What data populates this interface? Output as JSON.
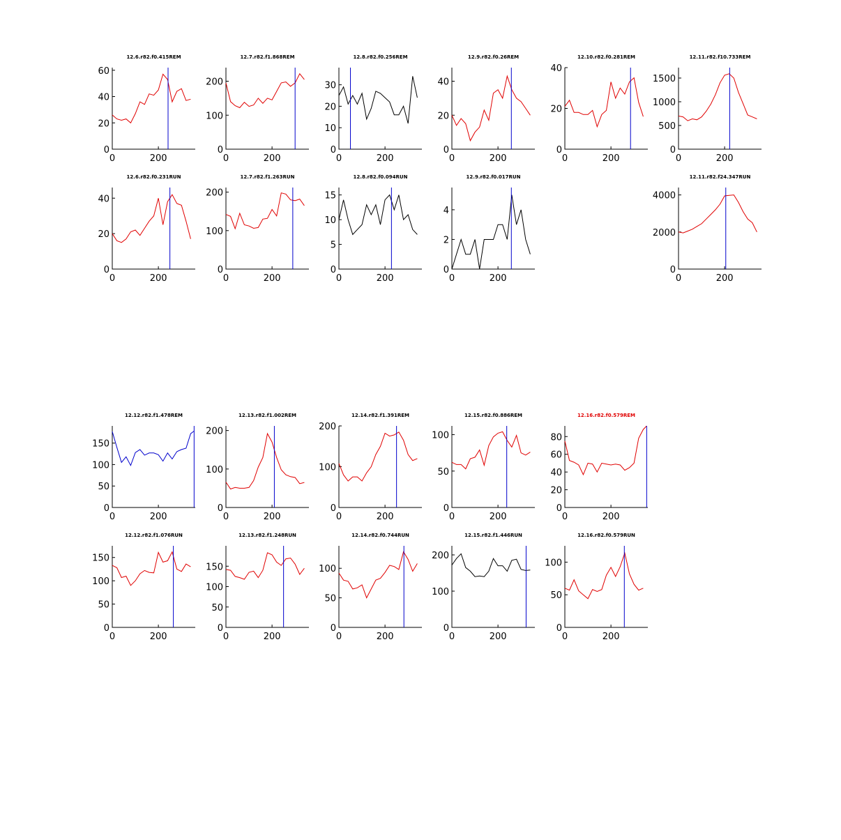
{
  "figure": {
    "colors": {
      "red": "#e00000",
      "black": "#000000",
      "blue": "#0000cc"
    }
  },
  "chart_data": [
    {
      "type": "line",
      "title": "12.6.r82.f0.415REM",
      "title_color": "black",
      "line_color": "red",
      "xlim": [
        0,
        360
      ],
      "ylim": [
        0,
        62
      ],
      "yticks": [
        0,
        20,
        40,
        60
      ],
      "xticks": [
        0,
        200
      ],
      "marker_x": 242,
      "x": [
        0,
        20,
        40,
        60,
        80,
        100,
        120,
        140,
        160,
        180,
        200,
        220,
        240,
        260,
        280,
        300,
        320,
        340
      ],
      "y": [
        26,
        23,
        22,
        23,
        20,
        27,
        36,
        34,
        42,
        41,
        45,
        57,
        53,
        36,
        44,
        46,
        37,
        38
      ]
    },
    {
      "type": "line",
      "title": "12.7.r82.f1.868REM",
      "title_color": "black",
      "line_color": "red",
      "xlim": [
        0,
        360
      ],
      "ylim": [
        0,
        240
      ],
      "yticks": [
        0,
        100,
        200
      ],
      "xticks": [
        0,
        200
      ],
      "marker_x": 300,
      "x": [
        0,
        20,
        40,
        60,
        80,
        100,
        120,
        140,
        160,
        180,
        200,
        220,
        240,
        260,
        280,
        300,
        320,
        340
      ],
      "y": [
        195,
        140,
        128,
        122,
        138,
        126,
        130,
        150,
        135,
        150,
        145,
        170,
        195,
        198,
        185,
        195,
        222,
        205
      ]
    },
    {
      "type": "line",
      "title": "12.8.r82.f0.256REM",
      "title_color": "black",
      "line_color": "black",
      "xlim": [
        0,
        360
      ],
      "ylim": [
        0,
        38
      ],
      "yticks": [
        0,
        10,
        20,
        30
      ],
      "xticks": [
        0,
        200
      ],
      "marker_x": 50,
      "x": [
        0,
        20,
        40,
        60,
        80,
        100,
        120,
        140,
        160,
        180,
        200,
        220,
        240,
        260,
        280,
        300,
        320,
        340
      ],
      "y": [
        25,
        29,
        21,
        25,
        21,
        26,
        14,
        19,
        27,
        26,
        24,
        22,
        16,
        16,
        20,
        12,
        34,
        24
      ]
    },
    {
      "type": "line",
      "title": "12.9.r82.f0.26REM",
      "title_color": "black",
      "line_color": "red",
      "xlim": [
        0,
        360
      ],
      "ylim": [
        0,
        48
      ],
      "yticks": [
        0,
        20,
        40
      ],
      "xticks": [
        0,
        200
      ],
      "marker_x": 258,
      "x": [
        0,
        20,
        40,
        60,
        80,
        100,
        120,
        140,
        160,
        180,
        200,
        220,
        240,
        260,
        280,
        300,
        320,
        340
      ],
      "y": [
        20,
        14,
        18,
        15,
        5,
        10,
        13,
        23,
        17,
        33,
        35,
        30,
        43,
        35,
        30,
        28,
        24,
        20
      ]
    },
    {
      "type": "line",
      "title": "12.10.r82.f0.281REM",
      "title_color": "black",
      "line_color": "red",
      "xlim": [
        0,
        360
      ],
      "ylim": [
        0,
        40
      ],
      "yticks": [
        0,
        20,
        40
      ],
      "xticks": [
        0,
        200
      ],
      "marker_x": 285,
      "x": [
        0,
        20,
        40,
        60,
        80,
        100,
        120,
        140,
        160,
        180,
        200,
        220,
        240,
        260,
        280,
        300,
        320,
        340
      ],
      "y": [
        21,
        24,
        18,
        18,
        17,
        17,
        19,
        11,
        17,
        19,
        33,
        25,
        30,
        27,
        33,
        35,
        23,
        16
      ]
    },
    {
      "type": "line",
      "title": "12.11.r82.f10.733REM",
      "title_color": "black",
      "line_color": "red",
      "xlim": [
        0,
        360
      ],
      "ylim": [
        0,
        1720
      ],
      "yticks": [
        0,
        500,
        1000,
        1500
      ],
      "xticks": [
        0,
        200
      ],
      "marker_x": 222,
      "x": [
        0,
        20,
        40,
        60,
        80,
        100,
        120,
        140,
        160,
        180,
        200,
        220,
        240,
        260,
        280,
        300,
        320,
        340
      ],
      "y": [
        700,
        680,
        600,
        640,
        620,
        680,
        800,
        950,
        1150,
        1400,
        1560,
        1590,
        1500,
        1200,
        960,
        720,
        680,
        640
      ]
    },
    {
      "type": "line",
      "title": "12.6.r82.f0.231RUN",
      "title_color": "black",
      "line_color": "red",
      "xlim": [
        0,
        360
      ],
      "ylim": [
        0,
        46
      ],
      "yticks": [
        0,
        20,
        40
      ],
      "xticks": [
        0,
        200
      ],
      "marker_x": 250,
      "x": [
        0,
        20,
        40,
        60,
        80,
        100,
        120,
        140,
        160,
        180,
        200,
        220,
        240,
        260,
        280,
        300,
        320,
        340
      ],
      "y": [
        20,
        16,
        15,
        17,
        21,
        22,
        19,
        23,
        27,
        30,
        40,
        25,
        38,
        42,
        37,
        36,
        27,
        17
      ]
    },
    {
      "type": "line",
      "title": "12.7.r82.f1.263RUN",
      "title_color": "black",
      "line_color": "red",
      "xlim": [
        0,
        360
      ],
      "ylim": [
        0,
        212
      ],
      "yticks": [
        0,
        100,
        200
      ],
      "xticks": [
        0,
        200
      ],
      "marker_x": 290,
      "x": [
        0,
        20,
        40,
        60,
        80,
        100,
        120,
        140,
        160,
        180,
        200,
        220,
        240,
        260,
        280,
        300,
        320,
        340
      ],
      "y": [
        142,
        137,
        105,
        145,
        115,
        112,
        106,
        108,
        130,
        132,
        155,
        138,
        198,
        195,
        180,
        178,
        182,
        165
      ]
    },
    {
      "type": "line",
      "title": "12.8.r82.f0.094RUN",
      "title_color": "black",
      "line_color": "black",
      "xlim": [
        0,
        360
      ],
      "ylim": [
        0,
        16.5
      ],
      "yticks": [
        0,
        5,
        10,
        15
      ],
      "xticks": [
        0,
        200
      ],
      "marker_x": 228,
      "x": [
        0,
        20,
        40,
        60,
        80,
        100,
        120,
        140,
        160,
        180,
        200,
        220,
        240,
        260,
        280,
        300,
        320,
        340
      ],
      "y": [
        10,
        14,
        10,
        7,
        8,
        9,
        13,
        11,
        13,
        9,
        14,
        15,
        12,
        15,
        10,
        11,
        8,
        7
      ]
    },
    {
      "type": "line",
      "title": "12.9.r82.f0.017RUN",
      "title_color": "black",
      "line_color": "black",
      "xlim": [
        0,
        360
      ],
      "ylim": [
        0,
        5.5
      ],
      "yticks": [
        0,
        2,
        4
      ],
      "xticks": [
        0,
        200
      ],
      "marker_x": 258,
      "x": [
        0,
        20,
        40,
        60,
        80,
        100,
        120,
        140,
        160,
        180,
        200,
        220,
        240,
        260,
        280,
        300,
        320,
        340
      ],
      "y": [
        0,
        1,
        2,
        1,
        1,
        2,
        0,
        2,
        2,
        2,
        3,
        3,
        2,
        5,
        3,
        4,
        2,
        1
      ]
    },
    null,
    {
      "type": "line",
      "title": "12.11.r82.f24.347RUN",
      "title_color": "black",
      "line_color": "red",
      "xlim": [
        0,
        360
      ],
      "ylim": [
        0,
        4400
      ],
      "yticks": [
        0,
        2000,
        4000
      ],
      "xticks": [
        0,
        200
      ],
      "marker_x": 205,
      "x": [
        0,
        20,
        40,
        60,
        80,
        100,
        120,
        140,
        160,
        180,
        200,
        220,
        240,
        260,
        280,
        300,
        320,
        340
      ],
      "y": [
        2000,
        1950,
        2050,
        2150,
        2300,
        2450,
        2700,
        2950,
        3200,
        3500,
        3950,
        3980,
        4000,
        3600,
        3100,
        2700,
        2500,
        2000
      ]
    },
    {
      "type": "line",
      "title": "12.12.r82.f1.478REM",
      "title_color": "black",
      "line_color": "blue",
      "xlim": [
        0,
        360
      ],
      "ylim": [
        0,
        190
      ],
      "yticks": [
        0,
        50,
        100,
        150
      ],
      "xticks": [
        0,
        200
      ],
      "marker_x": 355,
      "x": [
        0,
        20,
        40,
        60,
        80,
        100,
        120,
        140,
        160,
        180,
        200,
        220,
        240,
        260,
        280,
        300,
        320,
        340,
        355
      ],
      "y": [
        177,
        140,
        105,
        118,
        98,
        128,
        135,
        122,
        127,
        127,
        123,
        108,
        127,
        113,
        130,
        135,
        138,
        172,
        178
      ]
    },
    {
      "type": "line",
      "title": "12.13.r82.f1.002REM",
      "title_color": "black",
      "line_color": "red",
      "xlim": [
        0,
        360
      ],
      "ylim": [
        0,
        212
      ],
      "yticks": [
        0,
        100,
        200
      ],
      "xticks": [
        0,
        200
      ],
      "marker_x": 210,
      "x": [
        0,
        20,
        40,
        60,
        80,
        100,
        120,
        140,
        160,
        180,
        200,
        220,
        240,
        260,
        280,
        300,
        320,
        340
      ],
      "y": [
        66,
        48,
        52,
        50,
        50,
        52,
        70,
        105,
        130,
        192,
        170,
        130,
        98,
        85,
        80,
        78,
        62,
        65
      ]
    },
    {
      "type": "line",
      "title": "12.14.r82.f1.391REM",
      "title_color": "black",
      "line_color": "red",
      "xlim": [
        0,
        360
      ],
      "ylim": [
        0,
        200
      ],
      "yticks": [
        0,
        100,
        200
      ],
      "xticks": [
        0,
        200
      ],
      "marker_x": 250,
      "x": [
        0,
        20,
        40,
        60,
        80,
        100,
        120,
        140,
        160,
        180,
        200,
        220,
        240,
        260,
        280,
        300,
        320,
        340
      ],
      "y": [
        108,
        80,
        65,
        75,
        75,
        65,
        85,
        100,
        130,
        150,
        182,
        175,
        178,
        185,
        165,
        130,
        115,
        120
      ]
    },
    {
      "type": "line",
      "title": "12.15.r82.f0.886REM",
      "title_color": "black",
      "line_color": "red",
      "xlim": [
        0,
        360
      ],
      "ylim": [
        0,
        112
      ],
      "yticks": [
        0,
        50,
        100
      ],
      "xticks": [
        0,
        200
      ],
      "marker_x": 238,
      "x": [
        0,
        20,
        40,
        60,
        80,
        100,
        120,
        140,
        160,
        180,
        200,
        220,
        240,
        260,
        280,
        300,
        320,
        340
      ],
      "y": [
        62,
        59,
        59,
        53,
        67,
        69,
        79,
        58,
        85,
        97,
        102,
        104,
        92,
        83,
        99,
        75,
        72,
        76
      ]
    },
    {
      "type": "line",
      "title": "12.16.r82.f0.579REM",
      "title_color": "red",
      "line_color": "red",
      "xlim": [
        0,
        360
      ],
      "ylim": [
        0,
        92
      ],
      "yticks": [
        0,
        20,
        40,
        60,
        80
      ],
      "xticks": [
        0,
        200
      ],
      "marker_x": 355,
      "x": [
        0,
        20,
        40,
        60,
        80,
        100,
        120,
        140,
        160,
        180,
        200,
        220,
        240,
        260,
        280,
        300,
        320,
        340,
        355
      ],
      "y": [
        75,
        53,
        51,
        48,
        37,
        50,
        49,
        40,
        50,
        49,
        48,
        49,
        48,
        42,
        45,
        50,
        78,
        88,
        92
      ]
    },
    null,
    {
      "type": "line",
      "title": "12.12.r82.f1.076RUN",
      "title_color": "black",
      "line_color": "red",
      "xlim": [
        0,
        360
      ],
      "ylim": [
        0,
        175
      ],
      "yticks": [
        0,
        50,
        100,
        150
      ],
      "xticks": [
        0,
        200
      ],
      "marker_x": 265,
      "x": [
        0,
        20,
        40,
        60,
        80,
        100,
        120,
        140,
        160,
        180,
        200,
        220,
        240,
        260,
        280,
        300,
        320,
        340
      ],
      "y": [
        133,
        128,
        107,
        110,
        90,
        100,
        115,
        122,
        118,
        117,
        161,
        140,
        143,
        162,
        125,
        120,
        136,
        130
      ]
    },
    {
      "type": "line",
      "title": "12.13.r82.f1.248RUN",
      "title_color": "black",
      "line_color": "red",
      "xlim": [
        0,
        360
      ],
      "ylim": [
        0,
        200
      ],
      "yticks": [
        0,
        50,
        100,
        150
      ],
      "xticks": [
        0,
        200
      ],
      "marker_x": 250,
      "x": [
        0,
        20,
        40,
        60,
        80,
        100,
        120,
        140,
        160,
        180,
        200,
        220,
        240,
        260,
        280,
        300,
        320,
        340
      ],
      "y": [
        142,
        140,
        125,
        122,
        118,
        135,
        138,
        122,
        140,
        183,
        178,
        160,
        152,
        168,
        170,
        155,
        130,
        145
      ]
    },
    {
      "type": "line",
      "title": "12.14.r82.f0.744RUN",
      "title_color": "black",
      "line_color": "red",
      "xlim": [
        0,
        360
      ],
      "ylim": [
        0,
        138
      ],
      "yticks": [
        0,
        50,
        100
      ],
      "xticks": [
        0,
        200
      ],
      "marker_x": 282,
      "x": [
        0,
        20,
        40,
        60,
        80,
        100,
        120,
        140,
        160,
        180,
        200,
        220,
        240,
        260,
        280,
        300,
        320,
        340
      ],
      "y": [
        92,
        80,
        78,
        65,
        67,
        72,
        50,
        65,
        80,
        83,
        93,
        105,
        103,
        98,
        128,
        115,
        95,
        108
      ]
    },
    {
      "type": "line",
      "title": "12.15.r82.f1.446RUN",
      "title_color": "black",
      "line_color": "black",
      "xlim": [
        0,
        360
      ],
      "ylim": [
        0,
        225
      ],
      "yticks": [
        0,
        100,
        200
      ],
      "xticks": [
        0,
        200
      ],
      "marker_x": 322,
      "x": [
        0,
        20,
        40,
        60,
        80,
        100,
        120,
        140,
        160,
        180,
        200,
        220,
        240,
        260,
        280,
        300,
        320,
        340
      ],
      "y": [
        172,
        190,
        203,
        165,
        155,
        140,
        142,
        140,
        155,
        190,
        170,
        170,
        155,
        185,
        188,
        160,
        157,
        158
      ]
    },
    {
      "type": "line",
      "title": "12.16.r82.f0.579RUN",
      "title_color": "black",
      "line_color": "red",
      "xlim": [
        0,
        360
      ],
      "ylim": [
        0,
        125
      ],
      "yticks": [
        0,
        50,
        100
      ],
      "xticks": [
        0,
        200
      ],
      "marker_x": 258,
      "x": [
        0,
        20,
        40,
        60,
        80,
        100,
        120,
        140,
        160,
        180,
        200,
        220,
        240,
        260,
        280,
        300,
        320,
        340
      ],
      "y": [
        60,
        57,
        73,
        56,
        50,
        44,
        58,
        55,
        58,
        80,
        92,
        78,
        93,
        114,
        82,
        66,
        57,
        60
      ]
    },
    null
  ]
}
